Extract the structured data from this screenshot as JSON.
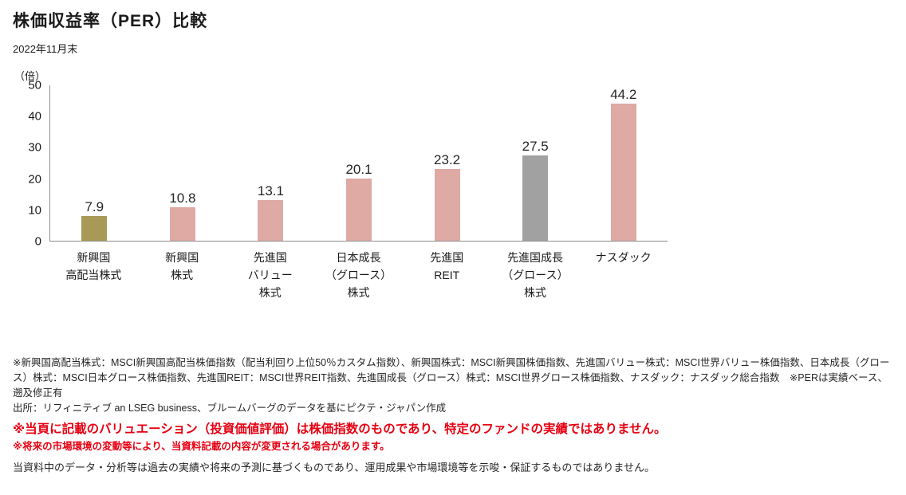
{
  "header": {
    "title": "株価収益率（PER）比較",
    "date": "2022年11月末"
  },
  "chart_data": {
    "type": "bar",
    "title": "株価収益率（PER）比較",
    "subtitle": "2022年11月末",
    "unit_label": "（倍）",
    "categories": [
      "新興国\n高配当株式",
      "新興国\n株式",
      "先進国\nバリュー\n株式",
      "日本成長\n（グロース）\n株式",
      "先進国\nREIT",
      "先進国成長\n（グロース）\n株式",
      "ナスダック"
    ],
    "values": [
      7.9,
      10.8,
      13.1,
      20.1,
      23.2,
      27.5,
      44.2
    ],
    "bar_colors": [
      "#a89a56",
      "#dfa9a4",
      "#dfa9a4",
      "#dfa9a4",
      "#dfa9a4",
      "#a1a1a1",
      "#dfa9a4"
    ],
    "xlabel": "",
    "ylabel": "（倍）",
    "ylim": [
      0,
      50
    ],
    "yticks": [
      0,
      10,
      20,
      30,
      40,
      50
    ],
    "grid": false,
    "legend": false
  },
  "footnotes": {
    "index_note": "※新興国高配当株式：MSCI新興国高配当株価指数（配当利回り上位50％カスタム指数）、新興国株式：MSCI新興国株価指数、先進国バリュー株式：MSCI世界バリュー株価指数、日本成長（グロース）株式：MSCI日本グロース株価指数、先進国REIT：MSCI世界REIT指数、先進国成長（グロース）株式：MSCI世界グロース株価指数、ナスダック：ナスダック総合指数　※PERは実績ベース、遡及修正有",
    "source": "出所：リフィニティブ an LSEG business、ブルームバーグのデータを基にピクテ・ジャパン作成",
    "warning_major": "※当頁に記載のバリュエーション（投資価値評価）は株価指数のものであり、特定のファンドの実績ではありません。",
    "warning_minor": "※将来の市場環境の変動等により、当資料記載の内容が変更される場合があります。",
    "disclaimer": "当資料中のデータ・分析等は過去の実績や将来の予測に基づくものであり、運用成果や市場環境等を示唆・保証するものではありません。"
  },
  "colors": {
    "rose": "#dfa9a4",
    "olive": "#a89a56",
    "gray": "#a1a1a1",
    "warning_red": "#e60012",
    "axis": "#8c8c8c",
    "text": "#1a1a1a"
  }
}
